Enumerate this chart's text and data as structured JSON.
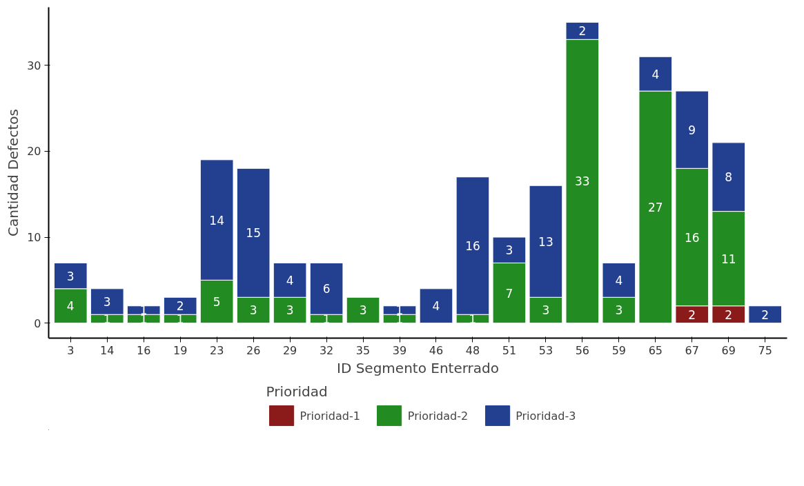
{
  "chart_data": {
    "type": "bar",
    "stacked": true,
    "xlabel": "ID Segmento Enterrado",
    "ylabel": "Cantidad Defectos",
    "legend_title": "Prioridad",
    "legend": "bottom",
    "grid": false,
    "data_labels": true,
    "categories": [
      "3",
      "14",
      "16",
      "19",
      "23",
      "26",
      "29",
      "32",
      "35",
      "39",
      "46",
      "48",
      "51",
      "53",
      "56",
      "59",
      "65",
      "67",
      "69",
      "75"
    ],
    "ylim": [
      -1.75,
      36.75
    ],
    "yticks": [
      0,
      10,
      20,
      30
    ],
    "series": [
      {
        "name": "Prioridad-1",
        "color": "#8b1a1a",
        "values": [
          null,
          null,
          null,
          null,
          null,
          null,
          null,
          null,
          null,
          null,
          null,
          null,
          null,
          null,
          null,
          null,
          null,
          2,
          2,
          null
        ]
      },
      {
        "name": "Prioridad-2",
        "color": "#228b22",
        "values": [
          4,
          1,
          1,
          1,
          5,
          3,
          3,
          1,
          3,
          1,
          null,
          1,
          7,
          3,
          33,
          3,
          27,
          16,
          11,
          null
        ]
      },
      {
        "name": "Prioridad-3",
        "color": "#233f8f",
        "values": [
          3,
          3,
          1,
          2,
          14,
          15,
          4,
          6,
          null,
          1,
          4,
          16,
          3,
          13,
          2,
          4,
          4,
          9,
          8,
          2
        ]
      }
    ]
  }
}
